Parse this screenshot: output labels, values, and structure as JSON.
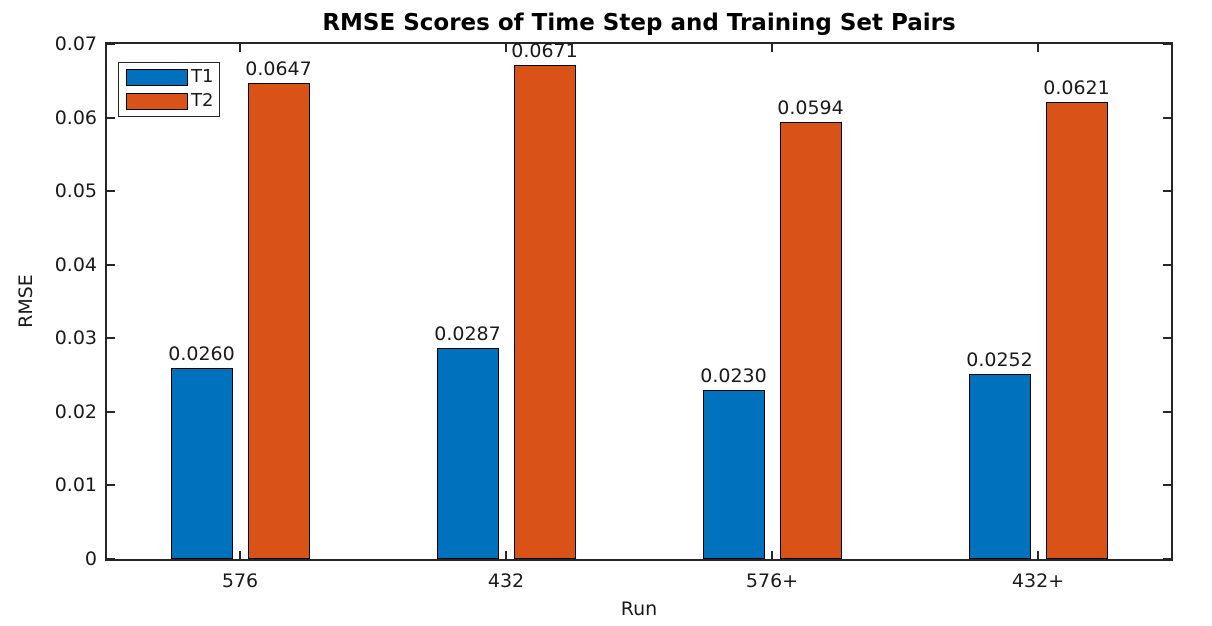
{
  "chart_data": {
    "type": "bar",
    "title": "RMSE Scores of Time Step and Training Set Pairs",
    "xlabel": "Run",
    "ylabel": "RMSE",
    "categories": [
      "576",
      "432",
      "576+",
      "432+"
    ],
    "series": [
      {
        "name": "T1",
        "color": "#0072BD",
        "values": [
          0.026,
          0.0287,
          0.023,
          0.0252
        ],
        "labels": [
          "0.0260",
          "0.0287",
          "0.0230",
          "0.0252"
        ]
      },
      {
        "name": "T2",
        "color": "#D95319",
        "values": [
          0.0647,
          0.0671,
          0.0594,
          0.0621
        ],
        "labels": [
          "0.0647",
          "0.0671",
          "0.0594",
          "0.0621"
        ]
      }
    ],
    "ylim": [
      0,
      0.07
    ],
    "yticks": [
      0,
      0.01,
      0.02,
      0.03,
      0.04,
      0.05,
      0.06,
      0.07
    ],
    "ytick_labels": [
      "0",
      "0.01",
      "0.02",
      "0.03",
      "0.04",
      "0.05",
      "0.06",
      "0.07"
    ],
    "legend_position": "top-left",
    "legend_entries": [
      "T1",
      "T2"
    ],
    "grid": false,
    "bar_edge_color": "#000000",
    "spine_color": "#262626",
    "background_color": "#ffffff",
    "tick_direction": "in",
    "box": true
  }
}
